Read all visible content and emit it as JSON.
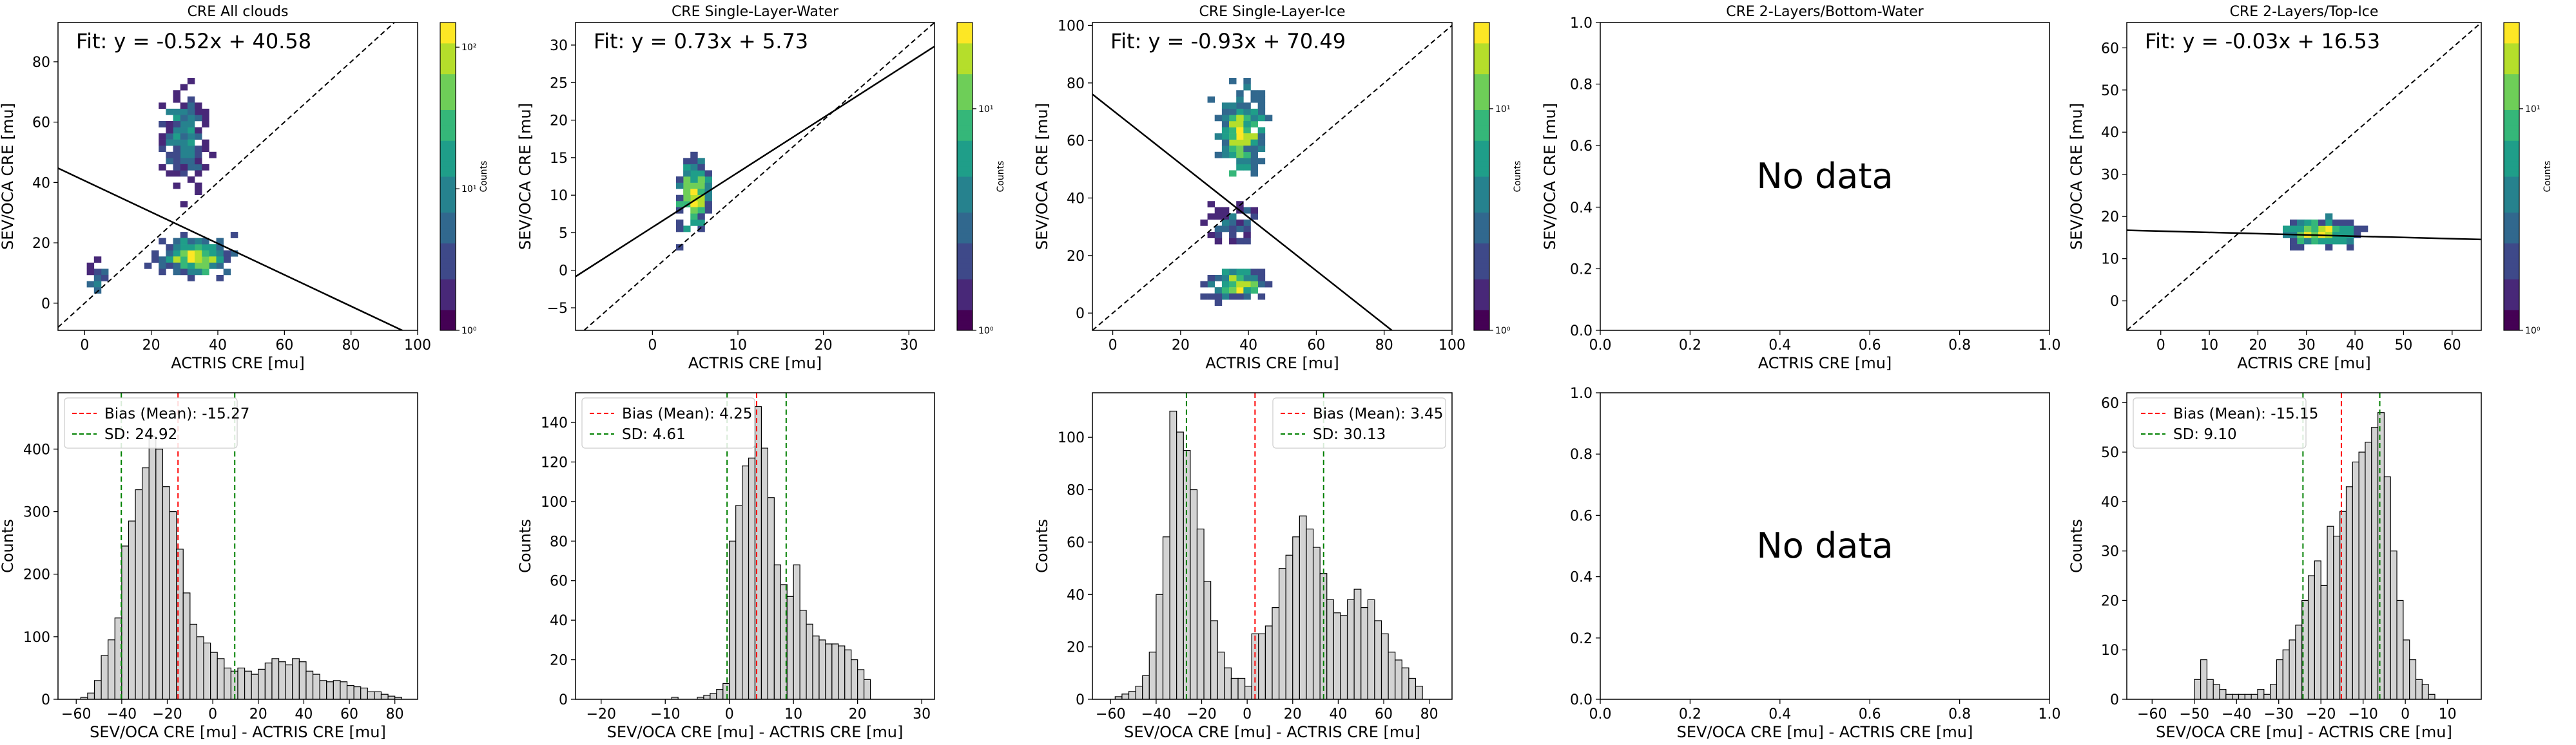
{
  "figure": {
    "background": "#ffffff"
  },
  "colors": {
    "viridis": [
      "#440154",
      "#482878",
      "#3e4989",
      "#31688e",
      "#26828e",
      "#1f9e89",
      "#35b779",
      "#6ece58",
      "#b5de2b",
      "#fde725"
    ],
    "hist_fill": "#d3d3d3",
    "hist_edge": "#000000",
    "bias_line": "#ff0000",
    "sd_line": "#008000",
    "fit_line": "#000000"
  },
  "chart_data": [
    {
      "id": "scatter-all",
      "type": "heatmap",
      "title": "CRE All clouds",
      "xlabel": "ACTRIS CRE [mu]",
      "ylabel": "SEV/OCA CRE [mu]",
      "xlim": [
        -8,
        100
      ],
      "ylim": [
        -9,
        93
      ],
      "xticks": [
        0,
        20,
        40,
        60,
        80,
        100
      ],
      "yticks": [
        0,
        20,
        40,
        60,
        80
      ],
      "fit": {
        "text": "Fit: y = -0.52x + 40.58",
        "slope": -0.52,
        "intercept": 40.58
      },
      "one_to_one": true,
      "blobs": [
        {
          "cx": 34,
          "cy": 15,
          "sx": 13,
          "sy": 7,
          "w": 1.0,
          "n": 260
        },
        {
          "cx": 30,
          "cy": 55,
          "sx": 8,
          "sy": 18,
          "w": 0.55,
          "n": 200
        },
        {
          "cx": 4,
          "cy": 8,
          "sx": 3,
          "sy": 6,
          "w": 0.45,
          "n": 26
        }
      ],
      "colorbar": {
        "label": "Counts",
        "scale": "log",
        "ticks": [
          "10⁰",
          "10¹",
          "10²"
        ]
      }
    },
    {
      "id": "scatter-slw",
      "type": "heatmap",
      "title": "CRE Single-Layer-Water",
      "xlabel": "ACTRIS CRE [mu]",
      "ylabel": "SEV/OCA CRE [mu]",
      "xlim": [
        -9,
        33
      ],
      "ylim": [
        -8,
        33
      ],
      "xticks": [
        0,
        10,
        20,
        30
      ],
      "yticks": [
        -5,
        0,
        5,
        10,
        15,
        20,
        25,
        30
      ],
      "fit": {
        "text": "Fit: y = 0.73x + 5.73",
        "slope": 0.73,
        "intercept": 5.73
      },
      "one_to_one": true,
      "blobs": [
        {
          "cx": 5,
          "cy": 10,
          "sx": 2.2,
          "sy": 5,
          "w": 1.0,
          "n": 200
        }
      ],
      "colorbar": {
        "label": "Counts",
        "scale": "log",
        "ticks": [
          "10⁰",
          "10¹"
        ]
      }
    },
    {
      "id": "scatter-sli",
      "type": "heatmap",
      "title": "CRE Single-Layer-Ice",
      "xlabel": "ACTRIS CRE [mu]",
      "ylabel": "SEV/OCA CRE [mu]",
      "xlim": [
        -6,
        100
      ],
      "ylim": [
        -6,
        101
      ],
      "xticks": [
        0,
        20,
        40,
        60,
        80,
        100
      ],
      "yticks": [
        0,
        20,
        40,
        60,
        80,
        100
      ],
      "fit": {
        "text": "Fit: y = -0.93x + 70.49",
        "slope": -0.93,
        "intercept": 70.49
      },
      "one_to_one": true,
      "blobs": [
        {
          "cx": 38,
          "cy": 62,
          "sx": 8,
          "sy": 16,
          "w": 1.0,
          "n": 220
        },
        {
          "cx": 37,
          "cy": 10,
          "sx": 9,
          "sy": 6,
          "w": 0.8,
          "n": 140
        },
        {
          "cx": 36,
          "cy": 32,
          "sx": 9,
          "sy": 8,
          "w": 0.35,
          "n": 60
        }
      ],
      "colorbar": {
        "label": "Counts",
        "scale": "log",
        "ticks": [
          "10⁰",
          "10¹"
        ]
      }
    },
    {
      "id": "scatter-2l-bw",
      "type": "empty",
      "title": "CRE 2-Layers/Bottom-Water",
      "xlabel": "ACTRIS CRE [mu]",
      "ylabel": "SEV/OCA CRE [mu]",
      "xlim": [
        0,
        1
      ],
      "ylim": [
        0,
        1
      ],
      "xticks": [
        "0.0",
        "0.2",
        "0.4",
        "0.6",
        "0.8",
        "1.0"
      ],
      "yticks": [
        "0.0",
        "0.2",
        "0.4",
        "0.6",
        "0.8",
        "1.0"
      ],
      "message": "No data"
    },
    {
      "id": "scatter-2l-ti",
      "type": "heatmap",
      "title": "CRE 2-Layers/Top-Ice",
      "xlabel": "ACTRIS CRE [mu]",
      "ylabel": "SEV/OCA CRE [mu]",
      "xlim": [
        -7,
        66
      ],
      "ylim": [
        -7,
        66
      ],
      "xticks": [
        0,
        10,
        20,
        30,
        40,
        50,
        60
      ],
      "yticks": [
        0,
        10,
        20,
        30,
        40,
        50,
        60
      ],
      "fit": {
        "text": "Fit: y = -0.03x + 16.53",
        "slope": -0.03,
        "intercept": 16.53
      },
      "one_to_one": true,
      "blobs": [
        {
          "cx": 33,
          "cy": 16,
          "sx": 9,
          "sy": 4,
          "w": 1.0,
          "n": 180
        }
      ],
      "colorbar": {
        "label": "Counts",
        "scale": "log",
        "ticks": [
          "10⁰",
          "10¹"
        ]
      }
    },
    {
      "id": "hist-all",
      "type": "bar",
      "xlabel": "SEV/OCA CRE [mu] - ACTRIS CRE [mu]",
      "ylabel": "Counts",
      "xlim": [
        -68,
        90
      ],
      "ylim": [
        0,
        490
      ],
      "xticks": [
        -60,
        -40,
        -20,
        0,
        20,
        40,
        60,
        80
      ],
      "yticks": [
        0,
        100,
        200,
        300,
        400
      ],
      "bin_start": -58,
      "bin_width": 3,
      "counts": [
        3,
        10,
        30,
        70,
        95,
        130,
        245,
        285,
        335,
        370,
        420,
        400,
        340,
        300,
        240,
        170,
        120,
        100,
        90,
        75,
        65,
        50,
        45,
        50,
        45,
        40,
        48,
        58,
        65,
        60,
        55,
        65,
        60,
        45,
        40,
        30,
        28,
        30,
        28,
        22,
        20,
        18,
        12,
        12,
        8,
        5,
        3
      ],
      "bias": -15.27,
      "sd": 24.92,
      "legend": [
        "Bias (Mean): -15.27",
        "SD: 24.92"
      ]
    },
    {
      "id": "hist-slw",
      "type": "bar",
      "xlabel": "SEV/OCA CRE [mu] - ACTRIS CRE [mu]",
      "ylabel": "Counts",
      "xlim": [
        -24,
        32
      ],
      "ylim": [
        0,
        155
      ],
      "xticks": [
        -20,
        -10,
        0,
        10,
        20,
        30
      ],
      "yticks": [
        0,
        20,
        40,
        60,
        80,
        100,
        120,
        140
      ],
      "bin_start": -9,
      "bin_width": 1,
      "counts": [
        1,
        0,
        0,
        0,
        1,
        2,
        3,
        5,
        8,
        80,
        98,
        118,
        122,
        148,
        127,
        102,
        68,
        58,
        52,
        68,
        45,
        38,
        32,
        30,
        28,
        28,
        27,
        25,
        20,
        15,
        10
      ],
      "bias": 4.25,
      "sd": 4.61,
      "legend": [
        "Bias (Mean): 4.25",
        "SD: 4.61"
      ]
    },
    {
      "id": "hist-sli",
      "type": "bar",
      "xlabel": "SEV/OCA CRE [mu] - ACTRIS CRE [mu]",
      "ylabel": "Counts",
      "xlim": [
        -68,
        90
      ],
      "ylim": [
        0,
        117
      ],
      "xticks": [
        -60,
        -40,
        -20,
        0,
        20,
        40,
        60,
        80
      ],
      "yticks": [
        0,
        20,
        40,
        60,
        80,
        100
      ],
      "bin_start": -58,
      "bin_width": 3,
      "counts": [
        1,
        2,
        3,
        5,
        9,
        18,
        40,
        62,
        110,
        102,
        95,
        80,
        65,
        45,
        30,
        18,
        12,
        8,
        8,
        5,
        25,
        25,
        28,
        35,
        50,
        55,
        62,
        70,
        65,
        58,
        48,
        38,
        33,
        32,
        38,
        42,
        35,
        38,
        30,
        25,
        18,
        15,
        12,
        8,
        5
      ],
      "bias": 3.45,
      "sd": 30.13,
      "legend": [
        "Bias (Mean): 3.45",
        "SD: 30.13"
      ]
    },
    {
      "id": "hist-2l-bw",
      "type": "empty",
      "xlabel": "SEV/OCA CRE [mu] - ACTRIS CRE [mu]",
      "ylabel": "",
      "xlim": [
        0,
        1
      ],
      "ylim": [
        0,
        1
      ],
      "xticks": [
        "0.0",
        "0.2",
        "0.4",
        "0.6",
        "0.8",
        "1.0"
      ],
      "yticks": [
        "0.0",
        "0.2",
        "0.4",
        "0.6",
        "0.8",
        "1.0"
      ],
      "message": "No data"
    },
    {
      "id": "hist-2l-ti",
      "type": "bar",
      "xlabel": "SEV/OCA CRE [mu] - ACTRIS CRE [mu]",
      "ylabel": "Counts",
      "xlim": [
        -66,
        18
      ],
      "ylim": [
        0,
        62
      ],
      "xticks": [
        -60,
        -50,
        -40,
        -30,
        -20,
        -10,
        0,
        10
      ],
      "yticks": [
        0,
        10,
        20,
        30,
        40,
        50,
        60
      ],
      "bin_start": -50,
      "bin_width": 1.5,
      "counts": [
        4,
        8,
        4,
        3,
        2,
        1,
        1,
        1,
        1,
        1,
        2,
        1,
        3,
        8,
        10,
        12,
        15,
        20,
        25,
        28,
        23,
        35,
        33,
        38,
        43,
        48,
        50,
        52,
        55,
        58,
        45,
        30,
        20,
        12,
        8,
        4,
        3,
        1
      ],
      "bias": -15.15,
      "sd": 9.1,
      "legend": [
        "Bias (Mean): -15.15",
        "SD: 9.10"
      ]
    }
  ]
}
